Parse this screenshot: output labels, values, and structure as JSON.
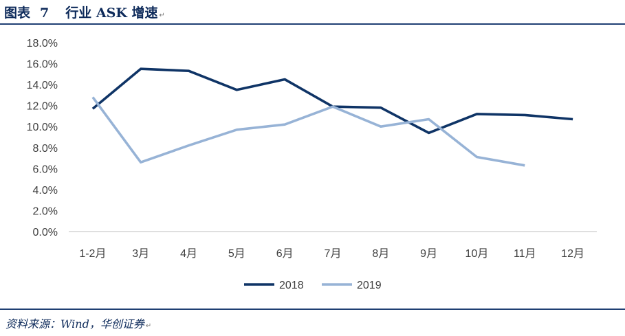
{
  "header": {
    "figure_label": "图表",
    "figure_number": "7",
    "title": "行业 ASK 增速"
  },
  "footer": {
    "source": "资料来源：Wind，华创证券"
  },
  "colors": {
    "rule": "#1f3f73",
    "series_2018": "#0f3466",
    "series_2019": "#97b3d6",
    "axis": "#bfbfbf",
    "tick_text": "#404040"
  },
  "chart_data": {
    "type": "line",
    "categories": [
      "1-2月",
      "3月",
      "4月",
      "5月",
      "6月",
      "7月",
      "8月",
      "9月",
      "10月",
      "11月",
      "12月"
    ],
    "ylim": [
      0,
      18
    ],
    "ytick_labels": [
      "0.0%",
      "2.0%",
      "4.0%",
      "6.0%",
      "8.0%",
      "10.0%",
      "12.0%",
      "14.0%",
      "16.0%",
      "18.0%"
    ],
    "y_unit": "%",
    "grid": false,
    "legend_position": "bottom",
    "series": [
      {
        "name": "2018",
        "color": "#0f3466",
        "values": [
          11.7,
          15.5,
          15.3,
          13.5,
          14.5,
          11.9,
          11.8,
          9.4,
          11.2,
          11.1,
          10.7
        ]
      },
      {
        "name": "2019",
        "color": "#97b3d6",
        "values": [
          12.8,
          6.6,
          8.2,
          9.7,
          10.2,
          11.9,
          10.0,
          10.7,
          7.1,
          6.3,
          null
        ]
      }
    ]
  }
}
